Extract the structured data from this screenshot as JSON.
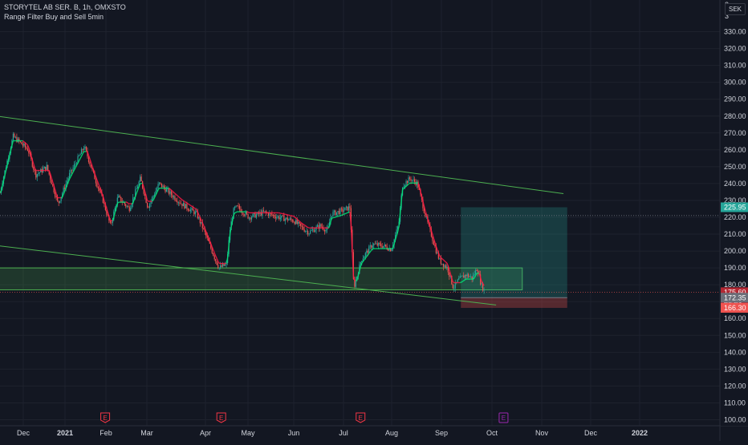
{
  "header": {
    "symbol_line": "STORYTEL AB SER. B, 1h, OMXSTO",
    "indicator_line": "Range Filter Buy and Sell 5min",
    "currency": "SEK"
  },
  "colors": {
    "background": "#131722",
    "grid": "#1e222d",
    "axis_text": "#d1d4dc",
    "up": "#26a69a",
    "down": "#ef5350",
    "filter_up": "#00e676",
    "filter_down": "#ff1744",
    "trendline": "#4caf50",
    "support_zone": "#4caf50",
    "target_zone": "#26a69a",
    "stop_zone": "#ef5350",
    "earnings_red": "#f23645",
    "earnings_purple": "#9c27b0"
  },
  "chart_data": {
    "type": "candlestick",
    "title": "STORYTEL AB SER. B, 1h, OMXSTO",
    "indicator": "Range Filter Buy and Sell 5min",
    "currency": "SEK",
    "ylim": [
      95,
      340
    ],
    "y_ticks": [
      100,
      110,
      120,
      130,
      140,
      150,
      160,
      170,
      180,
      190,
      200,
      210,
      220,
      230,
      240,
      250,
      260,
      270,
      280,
      290,
      300,
      310,
      320,
      330
    ],
    "y_tick_labels": [
      "100.00",
      "110.00",
      "120.00",
      "130.00",
      "140.00",
      "150.00",
      "160.00",
      "170.00",
      "180.00",
      "190.00",
      "200.00",
      "210.00",
      "220.00",
      "230.00",
      "240.00",
      "250.00",
      "260.00",
      "270.00",
      "280.00",
      "290.00",
      "300.00",
      "310.00",
      "320.00",
      "330.00"
    ],
    "x_ticks": [
      {
        "label": "Dec",
        "bold": false
      },
      {
        "label": "2021",
        "bold": true
      },
      {
        "label": "Feb",
        "bold": false
      },
      {
        "label": "Mar",
        "bold": false
      },
      {
        "label": "Apr",
        "bold": false
      },
      {
        "label": "May",
        "bold": false
      },
      {
        "label": "Jun",
        "bold": false
      },
      {
        "label": "Jul",
        "bold": false
      },
      {
        "label": "Aug",
        "bold": false
      },
      {
        "label": "Sep",
        "bold": false
      },
      {
        "label": "Oct",
        "bold": false
      },
      {
        "label": "Nov",
        "bold": false
      },
      {
        "label": "Dec",
        "bold": false
      },
      {
        "label": "2022",
        "bold": true
      }
    ],
    "price_path": [
      [
        0,
        222
      ],
      [
        1.5,
        212
      ],
      [
        3,
        218
      ],
      [
        4,
        240
      ],
      [
        5.5,
        268
      ],
      [
        7.5,
        260
      ],
      [
        8.5,
        245
      ],
      [
        10,
        250
      ],
      [
        11.5,
        228
      ],
      [
        13,
        245
      ],
      [
        15,
        262
      ],
      [
        16.5,
        242
      ],
      [
        17.5,
        230
      ],
      [
        18.5,
        215
      ],
      [
        19.5,
        232
      ],
      [
        21,
        225
      ],
      [
        22.5,
        243
      ],
      [
        23.5,
        226
      ],
      [
        25,
        240
      ],
      [
        27,
        232
      ],
      [
        28,
        228
      ],
      [
        29,
        225
      ],
      [
        30,
        222
      ],
      [
        31,
        212
      ],
      [
        32.5,
        195
      ],
      [
        33,
        190
      ],
      [
        34,
        192
      ],
      [
        34.5,
        214
      ],
      [
        35,
        225
      ],
      [
        35.5,
        226
      ],
      [
        37,
        220
      ],
      [
        39,
        223
      ],
      [
        41,
        220
      ],
      [
        43,
        218
      ],
      [
        44,
        214
      ],
      [
        45,
        211
      ],
      [
        46.5,
        215
      ],
      [
        47.5,
        212
      ],
      [
        48,
        222
      ],
      [
        49.5,
        224
      ],
      [
        50.5,
        226
      ],
      [
        51,
        178
      ],
      [
        52,
        195
      ],
      [
        53.5,
        204
      ],
      [
        55,
        203
      ],
      [
        56,
        201
      ],
      [
        57,
        216
      ],
      [
        57.5,
        239
      ],
      [
        58.5,
        243
      ],
      [
        59.5,
        240
      ],
      [
        60.5,
        222
      ],
      [
        62,
        200
      ],
      [
        62.5,
        194
      ],
      [
        63.5,
        190
      ],
      [
        64.3,
        178
      ],
      [
        65,
        183
      ],
      [
        66,
        186
      ],
      [
        66.8,
        184
      ],
      [
        67.5,
        190
      ],
      [
        68,
        180
      ],
      [
        68.5,
        176
      ]
    ],
    "last_price": 175.6,
    "levels": {
      "target": 225.95,
      "current": 175.6,
      "entry": 172.35,
      "stop": 166.3,
      "dotted_line": 221
    },
    "drawings": {
      "upper_trendline": {
        "x1": 0,
        "y1": 282,
        "x2": 79,
        "y2": 234
      },
      "lower_trendline": {
        "x1": 0,
        "y1": 205,
        "x2": 70,
        "y2": 168
      },
      "support_zone": {
        "x1": 0,
        "x2": 73.5,
        "y_low": 177,
        "y_high": 190
      },
      "target_zone": {
        "x1": 65.3,
        "x2": 79.5,
        "y_low": 172.35,
        "y_high": 225.95
      },
      "stop_zone": {
        "x1": 65.3,
        "x2": 79.5,
        "y_low": 166.3,
        "y_high": 172.35
      }
    },
    "earnings_markers": [
      {
        "label": "E",
        "week": 17.8,
        "color": "red"
      },
      {
        "label": "E",
        "week": 33.3,
        "color": "red"
      },
      {
        "label": "E",
        "week": 51.9,
        "color": "red"
      },
      {
        "label": "E",
        "week": 71.0,
        "color": "purple"
      }
    ],
    "price_labels": [
      {
        "text": "225.95",
        "value": 225.95,
        "kind": "target"
      },
      {
        "text": "175.60",
        "value": 175.6,
        "kind": "last"
      },
      {
        "text": "36:51",
        "value": 175.6,
        "kind": "countdown"
      },
      {
        "text": "172.35",
        "value": 172.35,
        "kind": "entry"
      },
      {
        "text": "166.30",
        "value": 166.3,
        "kind": "stop"
      }
    ],
    "top_partial_labels": [
      "3",
      "3"
    ]
  }
}
